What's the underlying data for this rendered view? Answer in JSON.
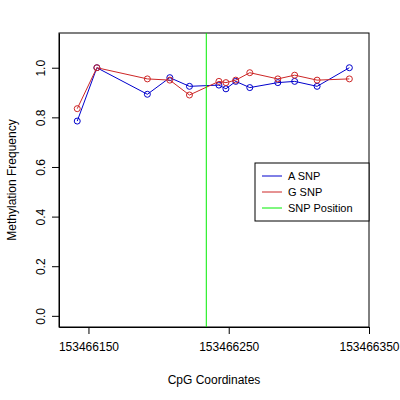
{
  "chart_data": {
    "type": "line",
    "x_label": "CpG Coordinates",
    "y_label": "Methylation Frequency",
    "x": [
      153466142,
      153466156,
      153466192,
      153466208,
      153466222,
      153466243,
      153466248,
      153466255,
      153466265,
      153466285,
      153466297,
      153466313,
      153466336
    ],
    "series": [
      {
        "name": "A SNP",
        "color": "#0000cd",
        "marker": "circle",
        "line_style": "solid",
        "values": [
          0.785,
          1.0,
          0.893,
          0.96,
          0.925,
          0.93,
          0.915,
          0.945,
          0.92,
          0.94,
          0.945,
          0.925,
          1.0
        ]
      },
      {
        "name": "G SNP",
        "color": "#cd2626",
        "marker": "circle",
        "line_style": "solid",
        "values": [
          0.835,
          1.0,
          0.955,
          0.95,
          0.89,
          0.945,
          0.94,
          0.95,
          0.98,
          0.955,
          0.97,
          0.95,
          0.955
        ]
      },
      {
        "name": "SNP Position",
        "color": "#00ee00",
        "type": "vline",
        "line_style": "solid",
        "x": [
          153466234
        ]
      }
    ],
    "xlim": [
      153466129,
      153466350
    ],
    "ylim": [
      -0.045,
      1.14
    ],
    "xticks": [
      153466150,
      153466250,
      153466350
    ],
    "yticks": [
      {
        "value": 0,
        "label": "0.0"
      },
      {
        "value": 0.2,
        "label": "0.2"
      },
      {
        "value": 0.4,
        "label": "0.4"
      },
      {
        "value": 0.6,
        "label": "0.6"
      },
      {
        "value": 0.8,
        "label": "0.8"
      },
      {
        "value": 1,
        "label": "1.0"
      }
    ],
    "legend": "right",
    "grid": false
  }
}
